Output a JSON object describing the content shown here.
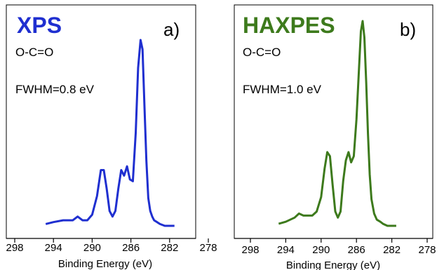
{
  "chart_data": [
    {
      "type": "line",
      "title": "XPS",
      "panel_label": "a)",
      "annotations": [
        "O-C=O",
        "FWHM=0.8 eV"
      ],
      "xlabel": "Binding Energy (eV)",
      "ylabel": "",
      "xlim": [
        298,
        278
      ],
      "x_reversed": true,
      "xticks": [
        298,
        294,
        290,
        286,
        282,
        278
      ],
      "y_ticks_shown": false,
      "color": "#1f2fd0",
      "series": [
        {
          "x": [
            294.8,
            294.0,
            293.0,
            292.0,
            291.5,
            291.0,
            290.5,
            290.0,
            289.5,
            289.1,
            288.8,
            288.5,
            288.2,
            287.9,
            287.6,
            287.3,
            287.0,
            286.7,
            286.4,
            286.1,
            285.8,
            285.5,
            285.25,
            285.0,
            284.8,
            284.6,
            284.4,
            284.2,
            284.0,
            283.8,
            283.6,
            283.3,
            283.0,
            282.5,
            282.0,
            281.5
          ],
          "values": [
            0.01,
            0.02,
            0.03,
            0.03,
            0.05,
            0.03,
            0.03,
            0.06,
            0.16,
            0.3,
            0.3,
            0.2,
            0.08,
            0.05,
            0.08,
            0.2,
            0.3,
            0.27,
            0.32,
            0.25,
            0.24,
            0.5,
            0.85,
            1.0,
            0.95,
            0.65,
            0.35,
            0.15,
            0.08,
            0.05,
            0.03,
            0.02,
            0.01,
            0.0,
            0.0,
            0.0
          ]
        }
      ]
    },
    {
      "type": "line",
      "title": "HAXPES",
      "panel_label": "b)",
      "annotations": [
        "O-C=O",
        "FWHM=1.0 eV"
      ],
      "xlabel": "Binding Energy (eV)",
      "ylabel": "",
      "xlim": [
        298,
        278
      ],
      "x_reversed": true,
      "xticks": [
        298,
        294,
        290,
        286,
        282,
        278
      ],
      "y_ticks_shown": false,
      "color": "#3d7a1c",
      "series": [
        {
          "x": [
            294.8,
            294.0,
            293.0,
            292.5,
            292.0,
            291.0,
            290.5,
            290.0,
            289.6,
            289.3,
            289.0,
            288.7,
            288.4,
            288.1,
            287.8,
            287.5,
            287.2,
            286.9,
            286.6,
            286.3,
            286.0,
            285.7,
            285.5,
            285.3,
            285.1,
            284.9,
            284.7,
            284.5,
            284.3,
            284.0,
            283.7,
            283.3,
            283.0,
            282.5,
            282.0,
            281.5
          ],
          "values": [
            0.01,
            0.02,
            0.04,
            0.06,
            0.05,
            0.05,
            0.07,
            0.14,
            0.28,
            0.36,
            0.34,
            0.2,
            0.07,
            0.04,
            0.07,
            0.22,
            0.32,
            0.36,
            0.31,
            0.34,
            0.52,
            0.78,
            0.95,
            1.0,
            0.92,
            0.7,
            0.45,
            0.25,
            0.13,
            0.06,
            0.03,
            0.02,
            0.01,
            0.0,
            0.0,
            0.0
          ]
        }
      ]
    }
  ]
}
